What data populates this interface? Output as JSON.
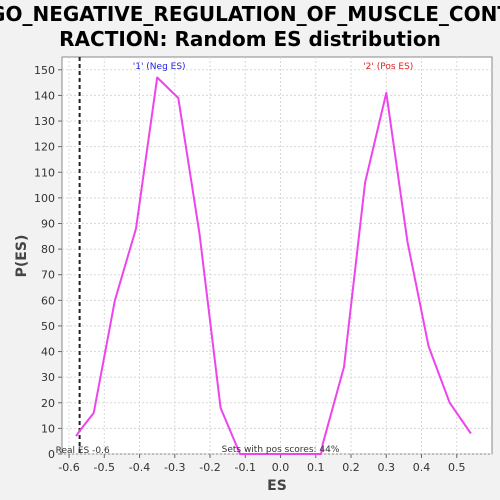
{
  "chart_data": {
    "type": "line",
    "title_line1": "GO_NEGATIVE_REGULATION_OF_MUSCLE_CONT",
    "title_line2": "RACTION: Random ES distribution",
    "xlabel": "ES",
    "ylabel": "P(ES)",
    "xlim": [
      -0.62,
      0.6
    ],
    "ylim": [
      0,
      155
    ],
    "xticks": [
      -0.6,
      -0.5,
      -0.4,
      -0.3,
      -0.2,
      -0.1,
      0.0,
      0.1,
      0.2,
      0.3,
      0.4,
      0.5
    ],
    "xtick_labels": [
      "-0.6",
      "-0.5",
      "-0.4",
      "-0.3",
      "-0.2",
      "-0.1",
      "0.0",
      "0.1",
      "0.2",
      "0.3",
      "0.4",
      "0.5"
    ],
    "yticks": [
      0,
      10,
      20,
      30,
      40,
      50,
      60,
      70,
      80,
      90,
      100,
      110,
      120,
      130,
      140,
      150
    ],
    "ytick_labels": [
      "0",
      "10",
      "20",
      "30",
      "40",
      "50",
      "60",
      "70",
      "80",
      "90",
      "100",
      "110",
      "120",
      "130",
      "140",
      "150"
    ],
    "grid": true,
    "series": [
      {
        "color": "#ee44ee",
        "points": [
          [
            -0.58,
            7
          ],
          [
            -0.57,
            9
          ],
          [
            -0.53,
            16
          ],
          [
            -0.47,
            60
          ],
          [
            -0.41,
            88
          ],
          [
            -0.35,
            147
          ],
          [
            -0.29,
            139
          ],
          [
            -0.23,
            86
          ],
          [
            -0.17,
            18
          ],
          [
            -0.115,
            0
          ],
          [
            0.115,
            0
          ],
          [
            0.12,
            4
          ],
          [
            0.18,
            34
          ],
          [
            0.24,
            106
          ],
          [
            0.3,
            141
          ],
          [
            0.36,
            83
          ],
          [
            0.42,
            42
          ],
          [
            0.48,
            20
          ],
          [
            0.54,
            8
          ]
        ]
      }
    ],
    "legend": [
      {
        "label": "'1' (Neg ES)",
        "color": "#2222dd",
        "x": -0.35
      },
      {
        "label": "'2' (Pos ES)",
        "color": "#dd2222",
        "x": 0.3
      }
    ],
    "real_es": {
      "value": -0.57,
      "label": "Real ES -0.6"
    },
    "annotation": "Sets with pos scores: 44%"
  }
}
